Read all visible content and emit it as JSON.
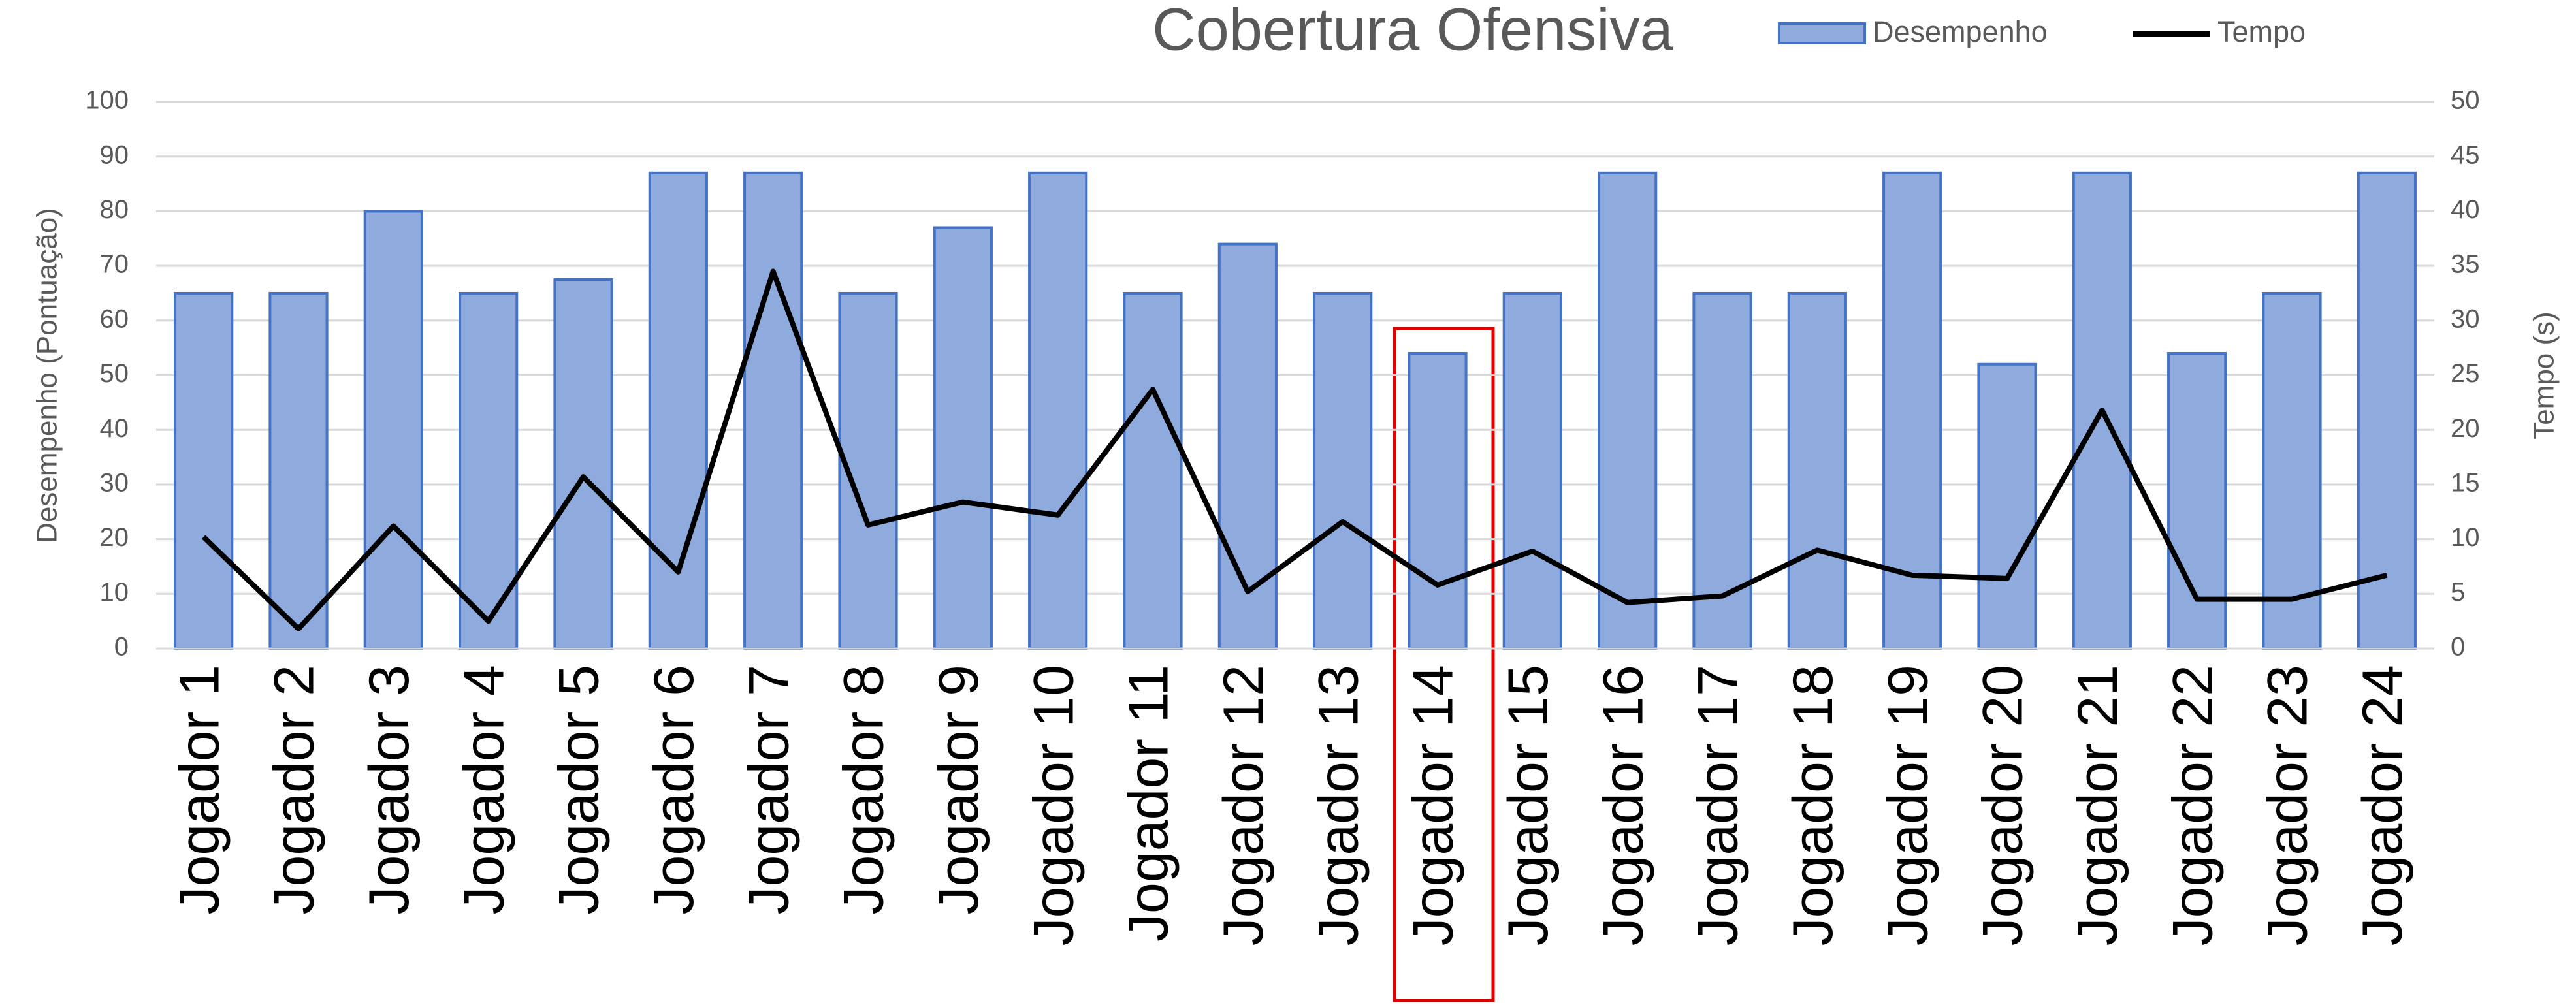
{
  "chart_data": {
    "type": "bar",
    "title": "Cobertura Ofensiva",
    "categories": [
      "Jogador 1",
      "Jogador 2",
      "Jogador 3",
      "Jogador 4",
      "Jogador 5",
      "Jogador 6",
      "Jogador 7",
      "Jogador 8",
      "Jogador 9",
      "Jogador 10",
      "Jogador 11",
      "Jogador 12",
      "Jogador 13",
      "Jogador 14",
      "Jogador 15",
      "Jogador 16",
      "Jogador 17",
      "Jogador 18",
      "Jogador 19",
      "Jogador 20",
      "Jogador 21",
      "Jogador 22",
      "Jogador 23",
      "Jogador 24"
    ],
    "series": [
      {
        "name": "Desempenho",
        "type": "bar",
        "axis": "y",
        "color": "#8faadc",
        "values": [
          65,
          65,
          80,
          65,
          67.5,
          87,
          87,
          65,
          77,
          87,
          65,
          74,
          65,
          54,
          65,
          87,
          65,
          65,
          87,
          52,
          87,
          54,
          65,
          87
        ]
      },
      {
        "name": "Tempo",
        "type": "line",
        "axis": "y2",
        "color": "#000000",
        "values": [
          10.2,
          1.8,
          11.2,
          2.5,
          15.7,
          7,
          34.5,
          11.3,
          13.4,
          12.2,
          23.7,
          5.2,
          11.6,
          5.8,
          8.9,
          4.2,
          4.8,
          9,
          6.7,
          6.4,
          21.8,
          4.5,
          4.5,
          6.7
        ]
      }
    ],
    "ylabel": "Desempenho (Pontuação)",
    "y2label": "Tempo (s)",
    "ylim": [
      0,
      100
    ],
    "yticks": [
      0,
      10,
      20,
      30,
      40,
      50,
      60,
      70,
      80,
      90,
      100
    ],
    "y2lim": [
      0,
      50
    ],
    "y2ticks": [
      0,
      5,
      10,
      15,
      20,
      25,
      30,
      35,
      40,
      45,
      50
    ],
    "grid": true,
    "legend": "top"
  }
}
